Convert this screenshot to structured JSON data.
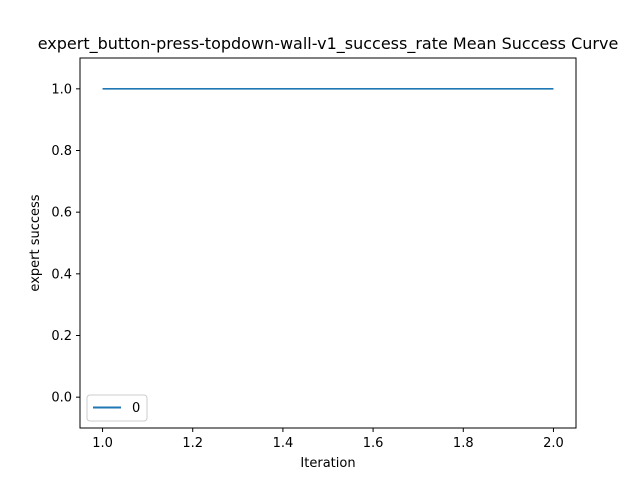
{
  "chart_data": {
    "type": "line",
    "title": "expert_button-press-topdown-wall-v1_success_rate Mean Success Curve",
    "xlabel": "Iteration",
    "ylabel": "expert success",
    "xlim": [
      0.95,
      2.05
    ],
    "ylim": [
      -0.1,
      1.1
    ],
    "xticks": [
      1.0,
      1.2,
      1.4,
      1.6,
      1.8,
      2.0
    ],
    "xtick_labels": [
      "1.0",
      "1.2",
      "1.4",
      "1.6",
      "1.8",
      "2.0"
    ],
    "yticks": [
      0.0,
      0.2,
      0.4,
      0.6,
      0.8,
      1.0
    ],
    "ytick_labels": [
      "0.0",
      "0.2",
      "0.4",
      "0.6",
      "0.8",
      "1.0"
    ],
    "grid": false,
    "legend_position": "lower-left",
    "series": [
      {
        "name": "0",
        "color": "#1f77b4",
        "x": [
          1.0,
          2.0
        ],
        "y": [
          1.0,
          1.0
        ]
      }
    ]
  }
}
